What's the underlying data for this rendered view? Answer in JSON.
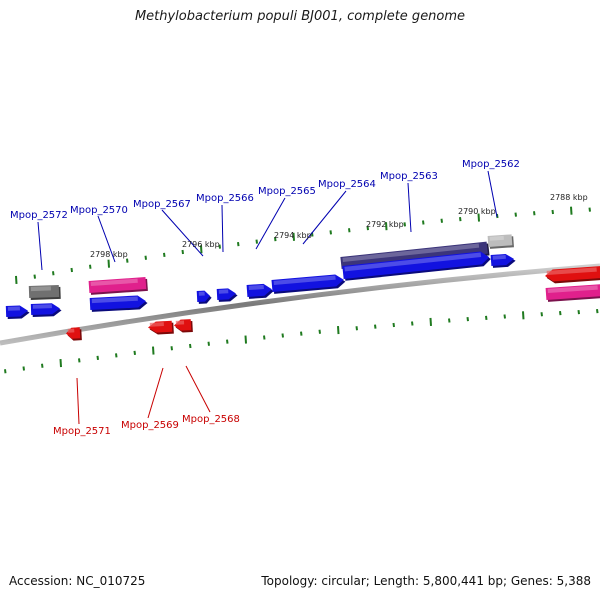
{
  "title": "Methylobacterium populi BJ001, complete genome",
  "footer": {
    "accession": "Accession: NC_010725",
    "summary": "Topology: circular; Length: 5,800,441 bp; Genes: 5,388"
  },
  "colors": {
    "backbone": "#8a8a8a",
    "tick": "#1f7a1f",
    "gene_blue": "#1212e0",
    "gene_red": "#e01010",
    "gene_pink": "#e0208c",
    "gene_gray": "#707070",
    "gene_lightgray": "#bdbdbd",
    "gene_purple": "#3c357a",
    "label_blue": "#0000b0",
    "label_red": "#c80000"
  },
  "scale_labels": [
    "2798 kbp",
    "2796 kbp",
    "2794 kbp",
    "2792 kbp",
    "2790 kbp",
    "2788 kbp"
  ],
  "gene_labels": {
    "top": [
      "Mpop_2572",
      "Mpop_2570",
      "Mpop_2567",
      "Mpop_2566",
      "Mpop_2565",
      "Mpop_2564",
      "Mpop_2563",
      "Mpop_2562"
    ],
    "bottom": [
      "Mpop_2571",
      "Mpop_2569",
      "Mpop_2568"
    ]
  }
}
